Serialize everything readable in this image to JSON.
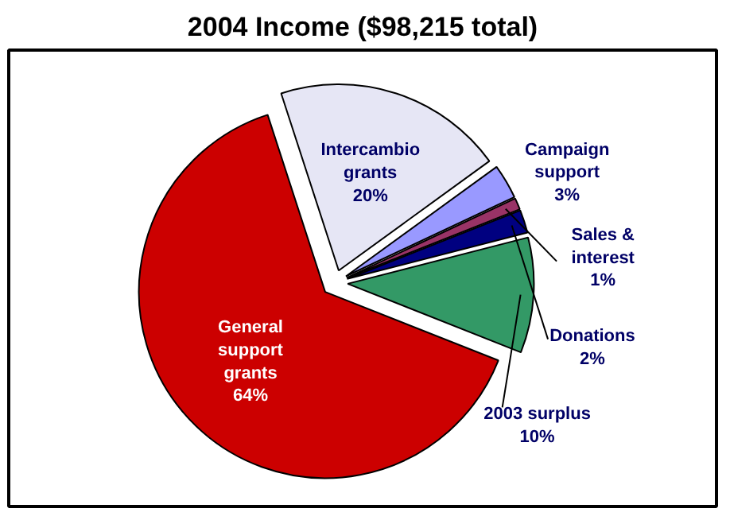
{
  "chart_data": {
    "type": "pie",
    "title": "2004 Income ($98,215 total)",
    "categories": [
      "Intercambio grants",
      "Campaign support",
      "Sales & interest",
      "Donations",
      "2003 surplus",
      "General support grants"
    ],
    "values": [
      20,
      3,
      1,
      2,
      10,
      64
    ],
    "value_labels": [
      "20%",
      "3%",
      "1%",
      "2%",
      "10%",
      "64%"
    ],
    "colors": [
      "#e6e6f5",
      "#9999ff",
      "#993366",
      "#000080",
      "#339966",
      "#cc0000"
    ]
  }
}
